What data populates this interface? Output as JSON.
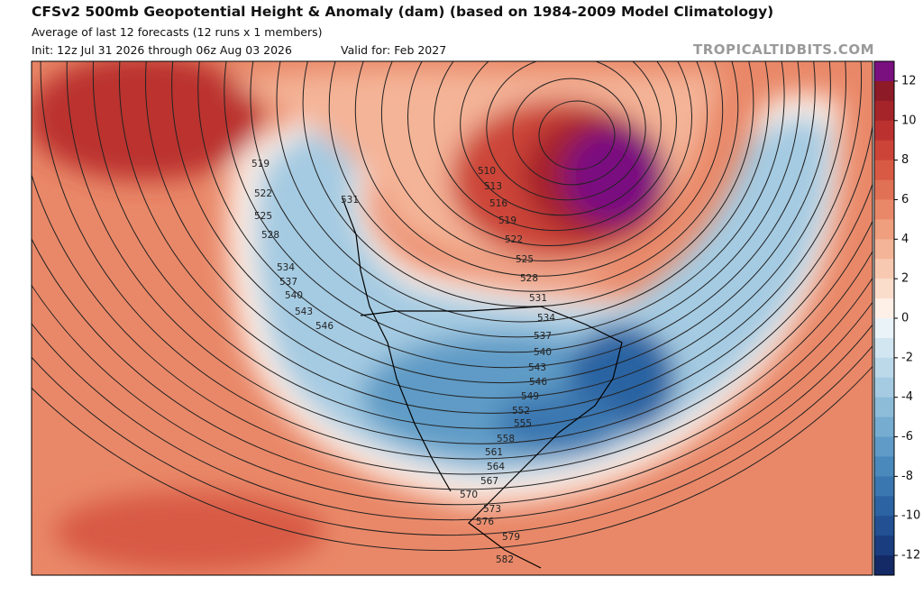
{
  "header": {
    "title": "CFSv2 500mb Geopotential Height & Anomaly (dam) (based on 1984-2009 Model Climatology)",
    "subtitle": "Average of last 12 forecasts (12 runs x 1 members)",
    "init": "Init: 12z Jul 31 2026 through 06z Aug 03 2026",
    "valid": "Valid for: Feb 2027",
    "watermark": "TROPICALTIDBITS.COM"
  },
  "colorbar": {
    "ticks": [
      12,
      10,
      8,
      6,
      4,
      2,
      0,
      -2,
      -4,
      -6,
      -8,
      -10,
      -12
    ],
    "colors": [
      "#7a0f80",
      "#8d1a27",
      "#a52429",
      "#bb312f",
      "#cc4437",
      "#d85a44",
      "#e17155",
      "#e98868",
      "#ef9e7e",
      "#f4b497",
      "#f8c9b1",
      "#fbddcc",
      "#fef0e7",
      "#eaf3f8",
      "#d2e6f1",
      "#bcd9ea",
      "#a4cbe2",
      "#8dbcd9",
      "#76acd0",
      "#5f9bc6",
      "#4a89bc",
      "#3a77b0",
      "#2c63a2",
      "#225092",
      "#1a3d80",
      "#142a66"
    ]
  },
  "contour_labels": [
    "519",
    "522",
    "525",
    "528",
    "534",
    "537",
    "540",
    "543",
    "546",
    "531",
    "510",
    "513",
    "516",
    "519",
    "522",
    "525",
    "528",
    "531",
    "534",
    "537",
    "540",
    "543",
    "546",
    "549",
    "552",
    "555",
    "558",
    "561",
    "564",
    "567",
    "570",
    "573",
    "576",
    "579",
    "582"
  ]
}
